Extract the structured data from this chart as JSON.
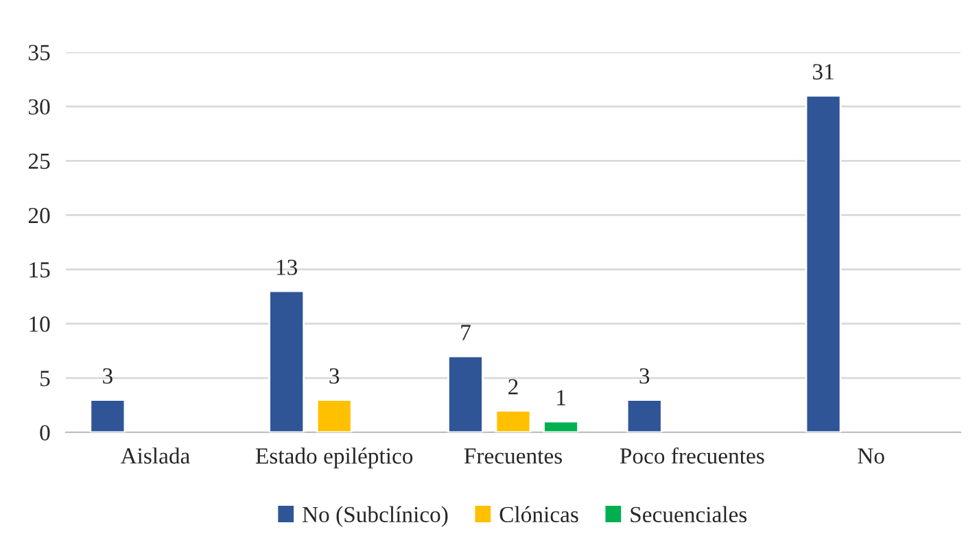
{
  "chart_data": {
    "type": "bar",
    "categories": [
      "Aislada",
      "Estado epiléptico",
      "Frecuentes",
      "Poco frecuentes",
      "No"
    ],
    "series": [
      {
        "name": "No (Subclínico)",
        "color": "#2f5597",
        "values": [
          3,
          13,
          7,
          3,
          31
        ]
      },
      {
        "name": "Clónicas",
        "color": "#ffc000",
        "values": [
          null,
          3,
          2,
          null,
          null
        ]
      },
      {
        "name": "Secuenciales",
        "color": "#00b050",
        "values": [
          null,
          null,
          1,
          null,
          null
        ]
      }
    ],
    "ylim": [
      0,
      35
    ],
    "yticks": [
      0,
      5,
      10,
      15,
      20,
      25,
      30,
      35
    ],
    "grid": "y",
    "legend": "bottom",
    "data_labels": true
  }
}
